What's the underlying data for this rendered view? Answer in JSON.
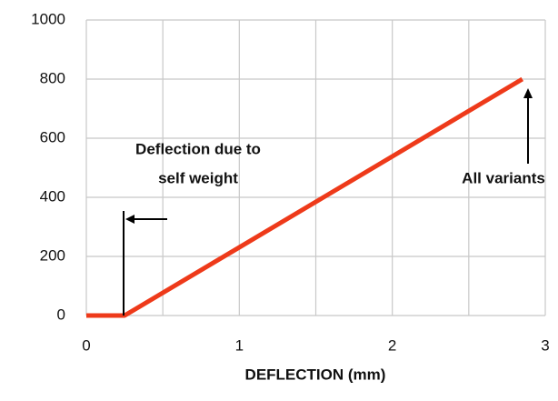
{
  "chart_data": {
    "type": "line",
    "x_label": "DEFLECTION (mm)",
    "x": [
      0,
      0.25,
      2.85
    ],
    "series": [
      {
        "color": "#ee3a1a",
        "values": [
          0,
          0,
          800
        ]
      }
    ],
    "xlim": [
      0,
      3
    ],
    "xticks": [
      0,
      1,
      2,
      3
    ],
    "xminor_ticks": [
      0.5,
      1.5,
      2.5
    ],
    "ylim": [
      0,
      1000
    ],
    "yticks": [
      0,
      200,
      400,
      600,
      800,
      1000
    ],
    "grid": true,
    "annotations": [
      {
        "lines": [
          "Deflection due to",
          "self weight"
        ]
      },
      {
        "lines": [
          "All variants"
        ]
      }
    ]
  }
}
